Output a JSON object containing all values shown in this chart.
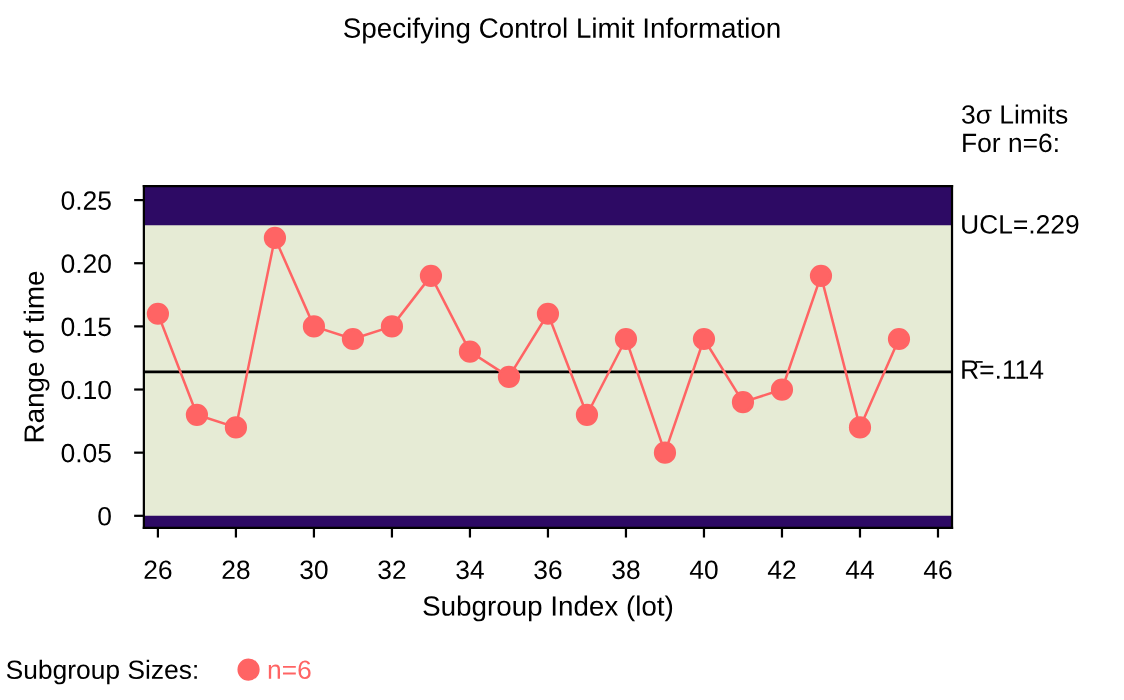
{
  "chart_data": {
    "type": "line",
    "title": "Specifying Control Limit Information",
    "xlabel": "Subgroup Index (lot)",
    "ylabel": "Range of time",
    "x": [
      26,
      27,
      28,
      29,
      30,
      31,
      32,
      33,
      34,
      35,
      36,
      37,
      38,
      39,
      40,
      41,
      42,
      43,
      44,
      45
    ],
    "series": [
      {
        "name": "n=6",
        "color": "#ff6464",
        "values": [
          0.16,
          0.08,
          0.07,
          0.22,
          0.15,
          0.14,
          0.15,
          0.19,
          0.13,
          0.11,
          0.16,
          0.08,
          0.14,
          0.05,
          0.14,
          0.09,
          0.1,
          0.19,
          0.07,
          0.14
        ]
      }
    ],
    "legend_title": "Subgroup Sizes:",
    "legend": "bottom left",
    "marker": "circle",
    "line_style": "solid",
    "grid": false,
    "xlim": [
      25.64,
      46.36
    ],
    "xticks": [
      26,
      28,
      30,
      32,
      34,
      36,
      38,
      40,
      42,
      44,
      46
    ],
    "ylim": [
      -0.0095,
      0.261
    ],
    "yticks": [
      0,
      0.05,
      {
        "value": 0.1,
        "label": "0.10"
      },
      0.15,
      {
        "value": 0.2,
        "label": "0.20"
      },
      0.25
    ],
    "ref_lines": [
      {
        "axis": "y",
        "value": 0.229,
        "label": "UCL=.229",
        "color": "#e6ebd5"
      },
      {
        "axis": "y",
        "value": 0.114,
        "label": "R̄=.114",
        "color": "#000000"
      }
    ],
    "bands": [
      {
        "axis": "y",
        "from": 0.229,
        "to": 0.261,
        "color": "#2d0a64"
      },
      {
        "axis": "y",
        "from": -0.0095,
        "to": 0,
        "color": "#2d0a64"
      }
    ],
    "annotations": [
      "3σ Limits\nFor n=6:"
    ]
  }
}
